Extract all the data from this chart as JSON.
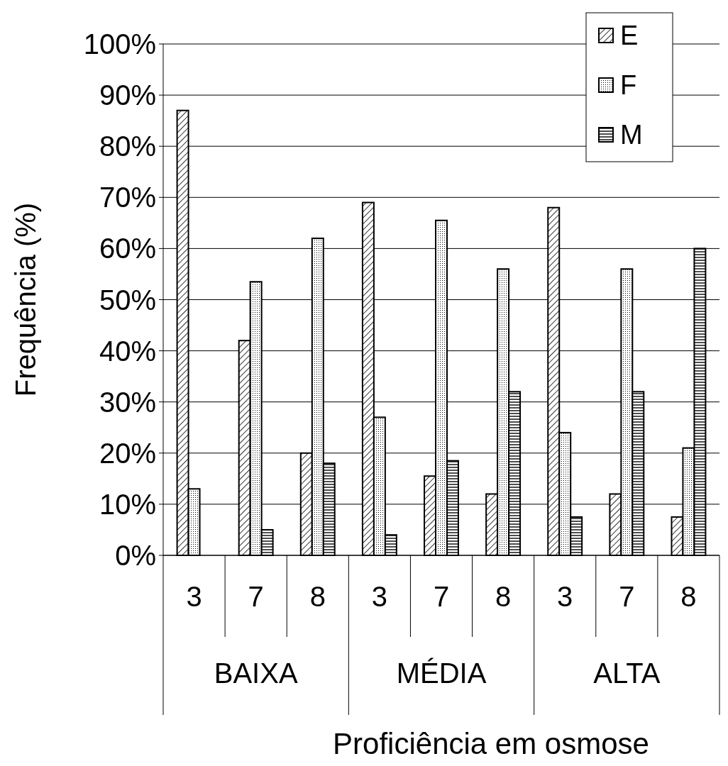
{
  "chart_data": {
    "type": "bar",
    "xlabel": "Proficiência em osmose",
    "ylabel": "Frequência (%)",
    "categories": [
      "3",
      "7",
      "8",
      "3",
      "7",
      "8",
      "3",
      "7",
      "8"
    ],
    "annotations": [
      "BAIXA",
      "MÉDIA",
      "ALTA"
    ],
    "series": [
      {
        "name": "E",
        "color": "#000000",
        "values": [
          87,
          42,
          20,
          69,
          15.5,
          12,
          68,
          12,
          7.5
        ]
      },
      {
        "name": "F",
        "color": "#000000",
        "values": [
          13,
          53.5,
          62,
          27,
          65.5,
          56,
          24,
          56,
          21
        ]
      },
      {
        "name": "M",
        "color": "#000000",
        "values": [
          0,
          5,
          18,
          4,
          18.5,
          32,
          7.5,
          32,
          60
        ]
      }
    ],
    "ylim": [
      0,
      100
    ],
    "yticks": [
      {
        "value": 0,
        "label": "0%"
      },
      {
        "value": 10,
        "label": "10%"
      },
      {
        "value": 20,
        "label": "20%"
      },
      {
        "value": 30,
        "label": "30%"
      },
      {
        "value": 40,
        "label": "40%"
      },
      {
        "value": 50,
        "label": "50%"
      },
      {
        "value": 60,
        "label": "60%"
      },
      {
        "value": 70,
        "label": "70%"
      },
      {
        "value": 80,
        "label": "80%"
      },
      {
        "value": 90,
        "label": "90%"
      },
      {
        "value": 100,
        "label": "100%"
      }
    ],
    "grid": "y",
    "legend": "top right"
  }
}
